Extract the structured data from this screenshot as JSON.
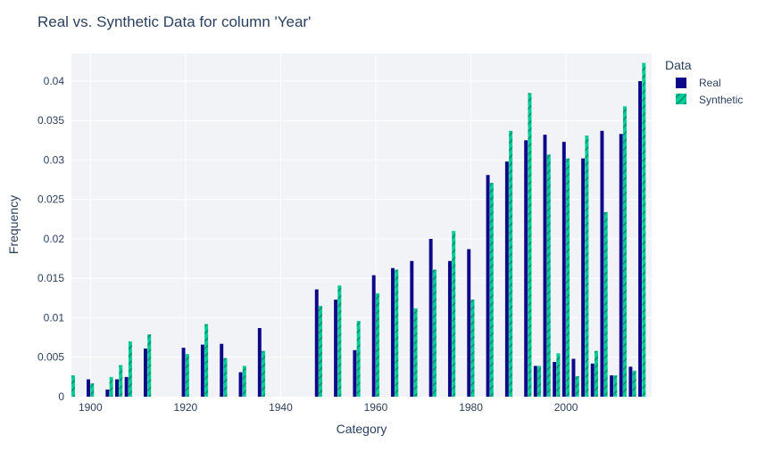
{
  "chart_data": {
    "type": "bar",
    "title": "Real vs. Synthetic Data for column 'Year'",
    "xlabel": "Category",
    "ylabel": "Frequency",
    "xlim": [
      1896,
      2018
    ],
    "ylim": [
      0,
      0.0435
    ],
    "x_ticks": [
      1900,
      1920,
      1940,
      1960,
      1980,
      2000
    ],
    "x_tick_labels": [
      "1900",
      "1920",
      "1940",
      "1960",
      "1980",
      "2000"
    ],
    "y_ticks": [
      0,
      0.005,
      0.01,
      0.015,
      0.02,
      0.025,
      0.03,
      0.035,
      0.04
    ],
    "y_tick_labels": [
      "0",
      "0.005",
      "0.01",
      "0.015",
      "0.02",
      "0.025",
      "0.03",
      "0.035",
      "0.04"
    ],
    "grid": true,
    "legend_title": "Data",
    "legend_position": "top-right",
    "bar_width_years": 0.8,
    "series": [
      {
        "name": "Real",
        "color": "#0d0887",
        "pattern": "solid",
        "points": [
          [
            1896,
            0.0002
          ],
          [
            1900,
            0.0022
          ],
          [
            1904,
            0.0009
          ],
          [
            1906,
            0.0022
          ],
          [
            1908,
            0.0025
          ],
          [
            1912,
            0.0061
          ],
          [
            1920,
            0.0062
          ],
          [
            1924,
            0.0066
          ],
          [
            1928,
            0.0067
          ],
          [
            1932,
            0.0031
          ],
          [
            1936,
            0.0087
          ],
          [
            1948,
            0.0136
          ],
          [
            1952,
            0.0123
          ],
          [
            1956,
            0.0059
          ],
          [
            1960,
            0.0154
          ],
          [
            1964,
            0.0163
          ],
          [
            1968,
            0.0172
          ],
          [
            1972,
            0.02
          ],
          [
            1976,
            0.0172
          ],
          [
            1980,
            0.0187
          ],
          [
            1984,
            0.0281
          ],
          [
            1988,
            0.0298
          ],
          [
            1992,
            0.0325
          ],
          [
            1994,
            0.0039
          ],
          [
            1996,
            0.0332
          ],
          [
            1998,
            0.0044
          ],
          [
            2000,
            0.0323
          ],
          [
            2002,
            0.0048
          ],
          [
            2004,
            0.0302
          ],
          [
            2006,
            0.0042
          ],
          [
            2008,
            0.0337
          ],
          [
            2010,
            0.0027
          ],
          [
            2012,
            0.0333
          ],
          [
            2014,
            0.0038
          ],
          [
            2016,
            0.04
          ]
        ]
      },
      {
        "name": "Synthetic",
        "color": "#00cc96",
        "pattern": "diagonal-stripes",
        "points": [
          [
            1896,
            0.0027
          ],
          [
            1900,
            0.0017
          ],
          [
            1904,
            0.0025
          ],
          [
            1906,
            0.004
          ],
          [
            1908,
            0.007
          ],
          [
            1912,
            0.0079
          ],
          [
            1920,
            0.0054
          ],
          [
            1924,
            0.0092
          ],
          [
            1928,
            0.0049
          ],
          [
            1932,
            0.0039
          ],
          [
            1936,
            0.0058
          ],
          [
            1948,
            0.0115
          ],
          [
            1952,
            0.0141
          ],
          [
            1956,
            0.0096
          ],
          [
            1960,
            0.0131
          ],
          [
            1964,
            0.0161
          ],
          [
            1968,
            0.0112
          ],
          [
            1972,
            0.0161
          ],
          [
            1976,
            0.021
          ],
          [
            1980,
            0.0123
          ],
          [
            1984,
            0.0271
          ],
          [
            1988,
            0.0337
          ],
          [
            1992,
            0.0385
          ],
          [
            1994,
            0.0039
          ],
          [
            1996,
            0.0307
          ],
          [
            1998,
            0.0055
          ],
          [
            2000,
            0.0302
          ],
          [
            2002,
            0.0026
          ],
          [
            2004,
            0.0331
          ],
          [
            2006,
            0.0058
          ],
          [
            2008,
            0.0234
          ],
          [
            2010,
            0.0027
          ],
          [
            2012,
            0.0368
          ],
          [
            2014,
            0.0033
          ],
          [
            2016,
            0.0423
          ]
        ]
      }
    ]
  }
}
